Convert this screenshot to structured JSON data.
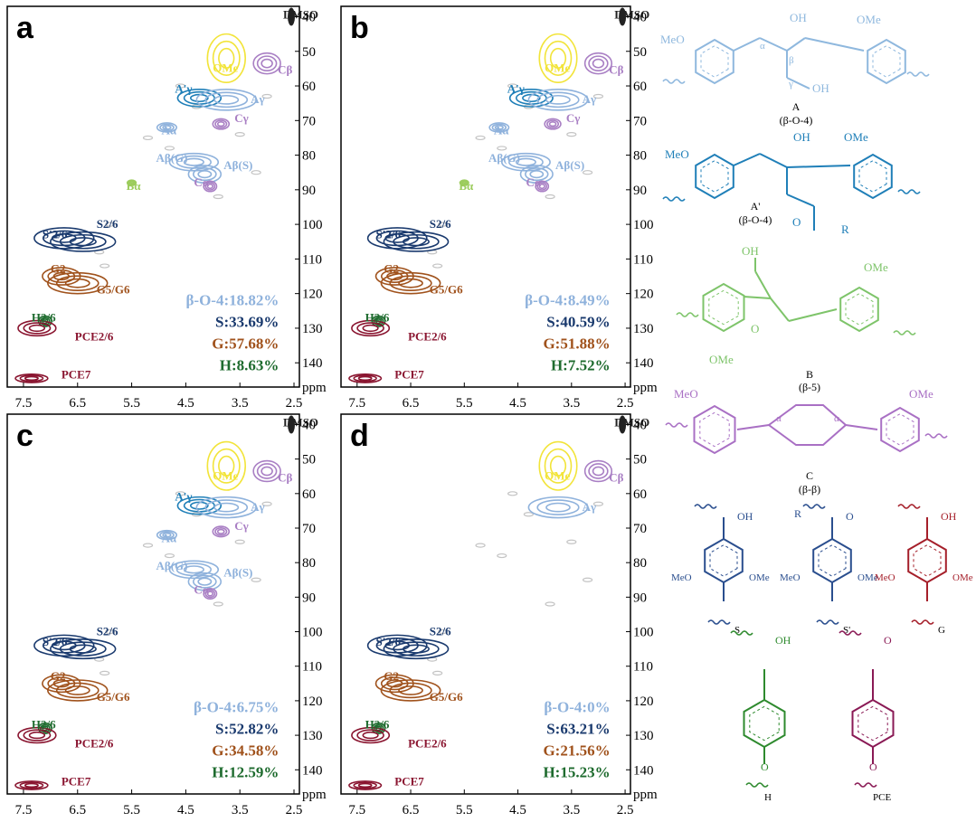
{
  "axis_unit": "ppm",
  "x_ticks": [
    "7.5",
    "6.5",
    "5.5",
    "4.5",
    "3.5",
    "2.5"
  ],
  "y_ticks": [
    "40",
    "50",
    "60",
    "70",
    "80",
    "90",
    "100",
    "110",
    "120",
    "130",
    "140"
  ],
  "colors": {
    "beta_o_4": "#8fb2dc",
    "s_units": "#1a3a6e",
    "g_units": "#a0521c",
    "h_units": "#1e6b2e",
    "pce": "#8a1530",
    "ome": "#f2e43a",
    "c_units": "#a97fc4",
    "aprime": "#1f7fb8",
    "b_units": "#9ccc5c",
    "noise": "#c4c4c4",
    "dmso": "#222222"
  },
  "chart_data": [
    {
      "type": "scatter",
      "panel": "a",
      "x_range": [
        7.8,
        2.4
      ],
      "y_range": [
        37,
        147
      ],
      "labels": [
        "DMSO",
        "OMe",
        "Cβ",
        "A'γ",
        "Aγ",
        "Cγ",
        "Aα",
        "Aβ(G)",
        "Aβ(S)",
        "Cα",
        "Bα",
        "S'2/6",
        "S2/6",
        "G2",
        "G5/G6",
        "H2/6",
        "PCE2/6",
        "PCE7"
      ],
      "stats": [
        "β-O-4:18.82%",
        "S:33.69%",
        "G:57.68%",
        "H:8.63%"
      ]
    },
    {
      "type": "scatter",
      "panel": "b",
      "x_range": [
        7.8,
        2.4
      ],
      "y_range": [
        37,
        147
      ],
      "labels": [
        "DMSO",
        "OMe",
        "Cβ",
        "A'γ",
        "Aγ",
        "Cγ",
        "Aα",
        "Aβ(G)",
        "Aβ(S)",
        "Cα",
        "Bα",
        "S'2/6",
        "S2/6",
        "G2",
        "G5/G6",
        "H2/6",
        "PCE2/6",
        "PCE7"
      ],
      "stats": [
        "β-O-4:8.49%",
        "S:40.59%",
        "G:51.88%",
        "H:7.52%"
      ]
    },
    {
      "type": "scatter",
      "panel": "c",
      "x_range": [
        7.8,
        2.4
      ],
      "y_range": [
        37,
        147
      ],
      "labels": [
        "DMSO",
        "OMe",
        "Cβ",
        "A'γ",
        "Aγ",
        "Cγ",
        "Aα",
        "Aβ(G)",
        "Aβ(S)",
        "Cα",
        "S'2/6",
        "S2/6",
        "G2",
        "G5/G6",
        "H2/6",
        "PCE2/6",
        "PCE7"
      ],
      "stats": [
        "β-O-4:6.75%",
        "S:52.82%",
        "G:34.58%",
        "H:12.59%"
      ]
    },
    {
      "type": "scatter",
      "panel": "d",
      "x_range": [
        7.8,
        2.4
      ],
      "y_range": [
        37,
        147
      ],
      "labels": [
        "DMSO",
        "OMe",
        "Cβ",
        "Aγ",
        "S'2/6",
        "S2/6",
        "G2",
        "G5/G6",
        "H2/6",
        "PCE2/6",
        "PCE7"
      ],
      "stats": [
        "β-O-4:0%",
        "S:63.21%",
        "G:21.56%",
        "H:15.23%"
      ]
    }
  ],
  "structures": {
    "A_label": "A",
    "A_sub": "(β-O-4)",
    "Ap_label": "A'",
    "Ap_sub": "(β-O-4)",
    "B_label": "B",
    "B_sub": "(β-5)",
    "C_label": "C",
    "C_sub": "(β-β)",
    "S_label": "S",
    "Sp_label": "S'",
    "G_label": "G",
    "H_label": "H",
    "PCE_label": "PCE",
    "OH": "OH",
    "OMe": "OMe",
    "MeO": "MeO",
    "O": "O",
    "R": "R",
    "alpha": "α",
    "beta": "β",
    "gamma": "γ"
  }
}
